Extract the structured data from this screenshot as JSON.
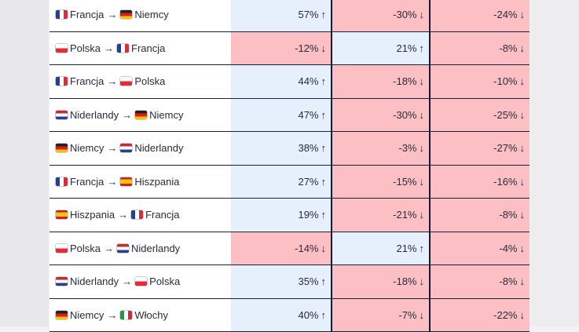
{
  "colors": {
    "positive": "#e6f0fc",
    "negative": "#fcc0c4",
    "divider": "#141a33"
  },
  "rows": [
    {
      "from": "Francja",
      "from_flag": "fr",
      "to": "Niemcy",
      "to_flag": "de",
      "v1": "57%",
      "a1": "↑",
      "s1": "pos",
      "v2": "-30%",
      "a2": "↓",
      "s2": "neg",
      "v3": "-24%",
      "a3": "↓",
      "s3": "neg"
    },
    {
      "from": "Polska",
      "from_flag": "pl",
      "to": "Francja",
      "to_flag": "fr",
      "v1": "-12%",
      "a1": "↓",
      "s1": "neg",
      "v2": "21%",
      "a2": "↑",
      "s2": "pos",
      "v3": "-8%",
      "a3": "↓",
      "s3": "neg"
    },
    {
      "from": "Francja",
      "from_flag": "fr",
      "to": "Polska",
      "to_flag": "pl",
      "v1": "44%",
      "a1": "↑",
      "s1": "pos",
      "v2": "-18%",
      "a2": "↓",
      "s2": "neg",
      "v3": "-10%",
      "a3": "↓",
      "s3": "neg"
    },
    {
      "from": "Niderlandy",
      "from_flag": "nl",
      "to": "Niemcy",
      "to_flag": "de",
      "v1": "47%",
      "a1": "↑",
      "s1": "pos",
      "v2": "-30%",
      "a2": "↓",
      "s2": "neg",
      "v3": "-25%",
      "a3": "↓",
      "s3": "neg"
    },
    {
      "from": "Niemcy",
      "from_flag": "de",
      "to": "Niderlandy",
      "to_flag": "nl",
      "v1": "38%",
      "a1": "↑",
      "s1": "pos",
      "v2": "-3%",
      "a2": "↓",
      "s2": "neg",
      "v3": "-27%",
      "a3": "↓",
      "s3": "neg"
    },
    {
      "from": "Francja",
      "from_flag": "fr",
      "to": "Hiszpania",
      "to_flag": "es",
      "v1": "27%",
      "a1": "↑",
      "s1": "pos",
      "v2": "-15%",
      "a2": "↓",
      "s2": "neg",
      "v3": "-16%",
      "a3": "↓",
      "s3": "neg"
    },
    {
      "from": "Hiszpania",
      "from_flag": "es",
      "to": "Francja",
      "to_flag": "fr",
      "v1": "19%",
      "a1": "↑",
      "s1": "pos",
      "v2": "-21%",
      "a2": "↓",
      "s2": "neg",
      "v3": "-8%",
      "a3": "↓",
      "s3": "neg"
    },
    {
      "from": "Polska",
      "from_flag": "pl",
      "to": "Niderlandy",
      "to_flag": "nl",
      "v1": "-14%",
      "a1": "↓",
      "s1": "neg",
      "v2": "21%",
      "a2": "↑",
      "s2": "pos",
      "v3": "-4%",
      "a3": "↓",
      "s3": "neg"
    },
    {
      "from": "Niderlandy",
      "from_flag": "nl",
      "to": "Polska",
      "to_flag": "pl",
      "v1": "35%",
      "a1": "↑",
      "s1": "pos",
      "v2": "-18%",
      "a2": "↓",
      "s2": "neg",
      "v3": "-8%",
      "a3": "↓",
      "s3": "neg"
    },
    {
      "from": "Niemcy",
      "from_flag": "de",
      "to": "Włochy",
      "to_flag": "it",
      "v1": "40%",
      "a1": "↑",
      "s1": "pos",
      "v2": "-7%",
      "a2": "↓",
      "s2": "neg",
      "v3": "-22%",
      "a3": "↓",
      "s3": "neg"
    }
  ]
}
